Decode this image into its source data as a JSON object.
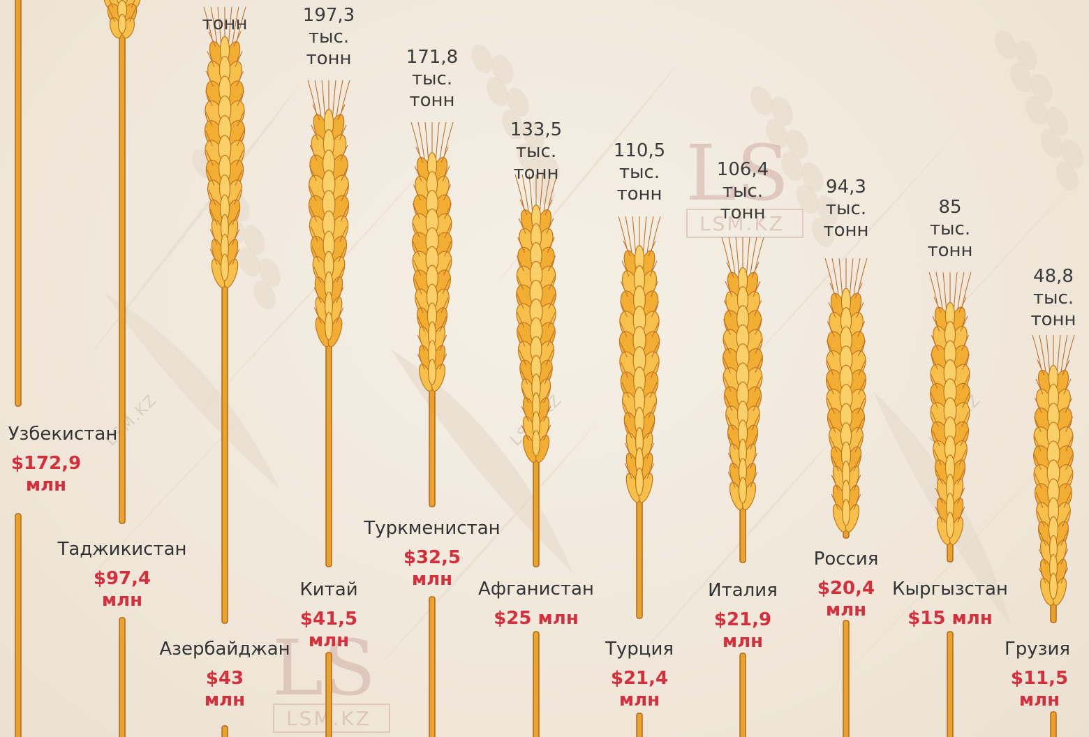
{
  "chart_data": {
    "type": "bar",
    "title": "",
    "xlabel": "",
    "ylabel": "",
    "colors": {
      "grain": "#f5b53a",
      "stem": "#e8a32a",
      "outline": "#b5651d",
      "money": "#d32f3c",
      "text": "#333333",
      "background": "#f3ece1"
    },
    "categories": [
      "Узбекистан",
      "Таджикистан",
      "Азербайджан",
      "Китай",
      "Туркменистан",
      "Афганистан",
      "Турция",
      "Италия",
      "Россия",
      "Кыргызстан",
      "Грузия"
    ],
    "series": [
      {
        "values": [
          null,
          null,
          null,
          197.3,
          171.8,
          133.5,
          110.5,
          106.4,
          94.3,
          85,
          48.8
        ]
      },
      {
        "values": [
          172.9,
          97.4,
          43,
          41.5,
          32.5,
          25,
          21.4,
          21.9,
          20.4,
          15,
          11.5
        ]
      }
    ],
    "bars": [
      {
        "country": "Узбекистан",
        "volume_lines": [
          "",
          "",
          ""
        ],
        "money_lines": [
          "$172,9",
          "млн"
        ]
      },
      {
        "country": "Таджикистан",
        "volume_lines": [
          "",
          "",
          ""
        ],
        "money_lines": [
          "$97,4",
          "млн"
        ]
      },
      {
        "country": "Азербайджан",
        "volume_lines": [
          "",
          "",
          "тонн"
        ],
        "money_lines": [
          "$43",
          "млн"
        ]
      },
      {
        "country": "Китай",
        "volume_lines": [
          "197,3",
          "тыс.",
          "тонн"
        ],
        "money_lines": [
          "$41,5",
          "млн"
        ]
      },
      {
        "country": "Туркменистан",
        "volume_lines": [
          "171,8",
          "тыс.",
          "тонн"
        ],
        "money_lines": [
          "$32,5",
          "млн"
        ]
      },
      {
        "country": "Афганистан",
        "volume_lines": [
          "133,5",
          "тыс.",
          "тонн"
        ],
        "money_lines": [
          "$25 млн"
        ]
      },
      {
        "country": "Турция",
        "volume_lines": [
          "110,5",
          "тыс.",
          "тонн"
        ],
        "money_lines": [
          "$21,4",
          "млн"
        ]
      },
      {
        "country": "Италия",
        "volume_lines": [
          "106,4",
          "тыс.",
          "тонн"
        ],
        "money_lines": [
          "$21,9",
          "млн"
        ]
      },
      {
        "country": "Россия",
        "volume_lines": [
          "94,3",
          "тыс.",
          "тонн"
        ],
        "money_lines": [
          "$20,4",
          "млн"
        ]
      },
      {
        "country": "Кыргызстан",
        "volume_lines": [
          "85",
          "тыс.",
          "тонн"
        ],
        "money_lines": [
          "$15 млн"
        ]
      },
      {
        "country": "Грузия",
        "volume_lines": [
          "48,8",
          "тыс.",
          "тонн"
        ],
        "money_lines": [
          "$11,5",
          "млн"
        ]
      }
    ]
  },
  "watermark": {
    "logo": "LS",
    "site": "LSM.KZ",
    "diagonal": "LSM.KZ"
  }
}
